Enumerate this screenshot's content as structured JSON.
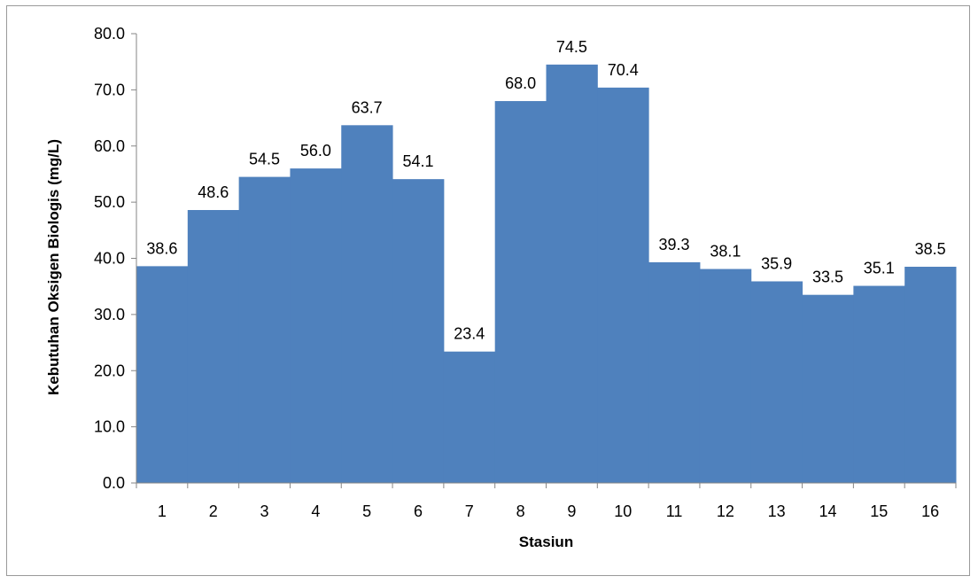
{
  "chart_data": {
    "type": "bar",
    "title": "",
    "xlabel": "Stasiun",
    "ylabel": "Kebutuhan Oksigen Biologis (mg/L)",
    "ylim": [
      0,
      80
    ],
    "ytick_step": 10,
    "ytick_labels": [
      "0.0",
      "10.0",
      "20.0",
      "30.0",
      "40.0",
      "50.0",
      "60.0",
      "70.0",
      "80.0"
    ],
    "categories": [
      "1",
      "2",
      "3",
      "4",
      "5",
      "6",
      "7",
      "8",
      "9",
      "10",
      "11",
      "12",
      "13",
      "14",
      "15",
      "16"
    ],
    "values": [
      38.6,
      48.6,
      54.5,
      56.0,
      63.7,
      54.1,
      23.4,
      68.0,
      74.5,
      70.4,
      39.3,
      38.1,
      35.9,
      33.5,
      35.1,
      38.5
    ],
    "value_labels": [
      "38.6",
      "48.6",
      "54.5",
      "56.0",
      "63.7",
      "54.1",
      "23.4",
      "68.0",
      "74.5",
      "70.4",
      "39.3",
      "38.1",
      "35.9",
      "33.5",
      "35.1",
      "38.5"
    ],
    "bar_color": "#4f81bd",
    "grid": false,
    "legend": "none"
  }
}
